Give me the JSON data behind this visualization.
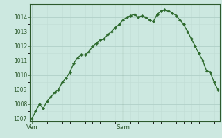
{
  "y_values": [
    1007.0,
    1007.5,
    1008.0,
    1007.7,
    1008.2,
    1008.5,
    1008.8,
    1009.0,
    1009.5,
    1009.8,
    1010.2,
    1010.8,
    1011.2,
    1011.4,
    1011.4,
    1011.6,
    1012.0,
    1012.2,
    1012.4,
    1012.5,
    1012.8,
    1013.0,
    1013.3,
    1013.5,
    1013.8,
    1014.0,
    1014.1,
    1014.2,
    1014.0,
    1014.1,
    1014.0,
    1013.8,
    1013.7,
    1014.2,
    1014.4,
    1014.5,
    1014.4,
    1014.3,
    1014.1,
    1013.8,
    1013.5,
    1013.0,
    1012.5,
    1012.0,
    1011.5,
    1011.0,
    1010.3,
    1010.2,
    1009.5,
    1009.0
  ],
  "x_tick_positions": [
    0,
    24
  ],
  "x_tick_labels": [
    "Ven",
    "Sam"
  ],
  "y_min": 1006.8,
  "y_max": 1014.9,
  "y_ticks": [
    1007,
    1008,
    1009,
    1010,
    1011,
    1012,
    1013,
    1014
  ],
  "line_color": "#2d6a2d",
  "marker_color": "#2d6a2d",
  "bg_color": "#cce8e0",
  "grid_color_major": "#b0d0c8",
  "grid_color_minor": "#c0dcd4",
  "vline_color": "#446644",
  "vline_x": 24,
  "n_points": 50,
  "label_color": "#2d5a2d",
  "spine_color": "#2d5a2d"
}
